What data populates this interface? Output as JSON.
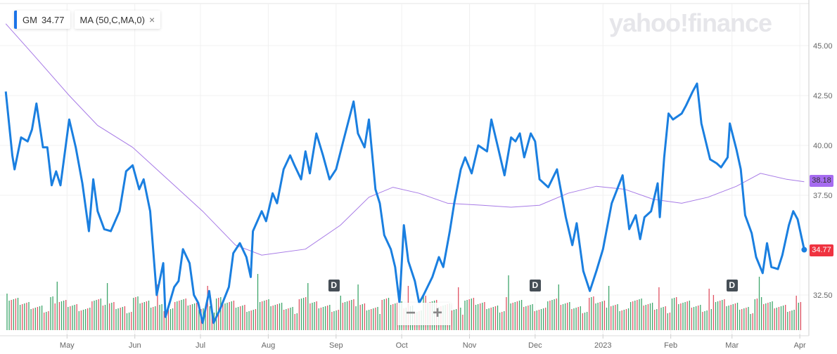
{
  "chart_data": {
    "type": "line",
    "ticker": "GM",
    "last_price": "34.77",
    "ma_label": "MA (50,C,MA,0)",
    "ma_last": "38.18",
    "y_ticks": [
      "45.00",
      "42.50",
      "40.00",
      "37.50",
      "32.50"
    ],
    "ylim": [
      30,
      46.5
    ],
    "x_ticks": [
      {
        "label": "May",
        "date": "2022-05-01"
      },
      {
        "label": "Jun",
        "date": "2022-06-01"
      },
      {
        "label": "Jul",
        "date": "2022-07-01"
      },
      {
        "label": "Aug",
        "date": "2022-08-01"
      },
      {
        "label": "Sep",
        "date": "2022-09-01"
      },
      {
        "label": "Oct",
        "date": "2022-10-01"
      },
      {
        "label": "Nov",
        "date": "2022-11-01"
      },
      {
        "label": "Dec",
        "date": "2022-12-01"
      },
      {
        "label": "2023",
        "date": "2023-01-01"
      },
      {
        "label": "Feb",
        "date": "2023-02-01"
      },
      {
        "label": "Mar",
        "date": "2023-03-01"
      },
      {
        "label": "Apr",
        "date": "2023-04-01"
      }
    ],
    "grid": true,
    "colors": {
      "price": "#1a7fe0",
      "ma": "#a77ae6",
      "last_tag": "#ef3340",
      "ma_tag": "#a66cf0",
      "vol_up": "#3fa66b",
      "vol_down": "#e05262"
    },
    "dividend_markers": [
      {
        "label": "D",
        "date": "2022-08-31"
      },
      {
        "label": "D",
        "date": "2022-12-01"
      },
      {
        "label": "D",
        "date": "2023-03-01"
      }
    ],
    "price": [
      [
        "2022-04-03",
        42.7
      ],
      [
        "2022-04-06",
        39.5
      ],
      [
        "2022-04-07",
        38.8
      ],
      [
        "2022-04-10",
        40.4
      ],
      [
        "2022-04-13",
        40.2
      ],
      [
        "2022-04-15",
        40.8
      ],
      [
        "2022-04-17",
        42.1
      ],
      [
        "2022-04-20",
        39.9
      ],
      [
        "2022-04-22",
        39.9
      ],
      [
        "2022-04-24",
        38.0
      ],
      [
        "2022-04-26",
        38.7
      ],
      [
        "2022-04-28",
        38.0
      ],
      [
        "2022-05-02",
        41.3
      ],
      [
        "2022-05-05",
        39.9
      ],
      [
        "2022-05-08",
        38.1
      ],
      [
        "2022-05-11",
        35.7
      ],
      [
        "2022-05-13",
        38.3
      ],
      [
        "2022-05-15",
        36.7
      ],
      [
        "2022-05-18",
        35.8
      ],
      [
        "2022-05-21",
        35.7
      ],
      [
        "2022-05-25",
        36.7
      ],
      [
        "2022-05-28",
        38.7
      ],
      [
        "2022-05-31",
        39.0
      ],
      [
        "2022-06-03",
        37.8
      ],
      [
        "2022-06-05",
        38.3
      ],
      [
        "2022-06-08",
        36.7
      ],
      [
        "2022-06-11",
        32.5
      ],
      [
        "2022-06-14",
        34.1
      ],
      [
        "2022-06-15",
        31.4
      ],
      [
        "2022-06-19",
        32.9
      ],
      [
        "2022-06-21",
        33.2
      ],
      [
        "2022-06-23",
        34.8
      ],
      [
        "2022-06-26",
        34.1
      ],
      [
        "2022-06-28",
        32.5
      ],
      [
        "2022-06-30",
        32.1
      ],
      [
        "2022-07-02",
        31.1
      ],
      [
        "2022-07-05",
        32.7
      ],
      [
        "2022-07-07",
        31.1
      ],
      [
        "2022-07-10",
        31.8
      ],
      [
        "2022-07-14",
        32.9
      ],
      [
        "2022-07-16",
        34.6
      ],
      [
        "2022-07-19",
        35.1
      ],
      [
        "2022-07-22",
        34.4
      ],
      [
        "2022-07-24",
        33.4
      ],
      [
        "2022-07-25",
        35.7
      ],
      [
        "2022-07-29",
        36.7
      ],
      [
        "2022-07-31",
        36.2
      ],
      [
        "2022-08-03",
        37.6
      ],
      [
        "2022-08-05",
        37.1
      ],
      [
        "2022-08-08",
        38.8
      ],
      [
        "2022-08-11",
        39.5
      ],
      [
        "2022-08-13",
        39.0
      ],
      [
        "2022-08-16",
        38.3
      ],
      [
        "2022-08-18",
        39.7
      ],
      [
        "2022-08-20",
        38.6
      ],
      [
        "2022-08-23",
        40.6
      ],
      [
        "2022-08-26",
        39.5
      ],
      [
        "2022-08-29",
        38.3
      ],
      [
        "2022-09-01",
        38.8
      ],
      [
        "2022-09-04",
        40.1
      ],
      [
        "2022-09-09",
        42.2
      ],
      [
        "2022-09-11",
        40.6
      ],
      [
        "2022-09-14",
        39.9
      ],
      [
        "2022-09-16",
        41.3
      ],
      [
        "2022-09-19",
        37.8
      ],
      [
        "2022-09-21",
        37.1
      ],
      [
        "2022-09-23",
        35.5
      ],
      [
        "2022-09-26",
        34.8
      ],
      [
        "2022-09-28",
        33.9
      ],
      [
        "2022-09-30",
        32.1
      ],
      [
        "2022-10-02",
        36.0
      ],
      [
        "2022-10-04",
        34.2
      ],
      [
        "2022-10-07",
        33.2
      ],
      [
        "2022-10-09",
        32.1
      ],
      [
        "2022-10-11",
        32.5
      ],
      [
        "2022-10-15",
        33.4
      ],
      [
        "2022-10-18",
        34.4
      ],
      [
        "2022-10-20",
        33.9
      ],
      [
        "2022-10-23",
        35.7
      ],
      [
        "2022-10-25",
        37.1
      ],
      [
        "2022-10-28",
        38.8
      ],
      [
        "2022-10-30",
        39.4
      ],
      [
        "2022-11-02",
        38.6
      ],
      [
        "2022-11-05",
        40.0
      ],
      [
        "2022-11-09",
        39.7
      ],
      [
        "2022-11-11",
        41.3
      ],
      [
        "2022-11-14",
        39.9
      ],
      [
        "2022-11-17",
        38.5
      ],
      [
        "2022-11-20",
        40.4
      ],
      [
        "2022-11-22",
        40.2
      ],
      [
        "2022-11-24",
        40.6
      ],
      [
        "2022-11-26",
        39.4
      ],
      [
        "2022-11-29",
        40.6
      ],
      [
        "2022-12-01",
        40.2
      ],
      [
        "2022-12-03",
        38.3
      ],
      [
        "2022-12-07",
        37.9
      ],
      [
        "2022-12-11",
        38.8
      ],
      [
        "2022-12-15",
        36.4
      ],
      [
        "2022-12-18",
        35.0
      ],
      [
        "2022-12-20",
        36.1
      ],
      [
        "2022-12-23",
        33.7
      ],
      [
        "2022-12-26",
        32.7
      ],
      [
        "2022-12-29",
        33.7
      ],
      [
        "2023-01-01",
        34.8
      ],
      [
        "2023-01-05",
        37.1
      ],
      [
        "2023-01-10",
        38.5
      ],
      [
        "2023-01-13",
        35.8
      ],
      [
        "2023-01-16",
        36.5
      ],
      [
        "2023-01-18",
        35.3
      ],
      [
        "2023-01-20",
        36.4
      ],
      [
        "2023-01-23",
        36.7
      ],
      [
        "2023-01-26",
        38.1
      ],
      [
        "2023-01-27",
        36.4
      ],
      [
        "2023-01-29",
        39.4
      ],
      [
        "2023-01-31",
        41.6
      ],
      [
        "2023-02-02",
        41.3
      ],
      [
        "2023-02-06",
        41.6
      ],
      [
        "2023-02-08",
        42.0
      ],
      [
        "2023-02-11",
        42.7
      ],
      [
        "2023-02-13",
        43.1
      ],
      [
        "2023-02-15",
        41.1
      ],
      [
        "2023-02-19",
        39.3
      ],
      [
        "2023-02-22",
        39.1
      ],
      [
        "2023-02-24",
        38.9
      ],
      [
        "2023-02-27",
        39.4
      ],
      [
        "2023-02-28",
        41.1
      ],
      [
        "2023-03-03",
        39.8
      ],
      [
        "2023-03-05",
        38.8
      ],
      [
        "2023-03-07",
        36.5
      ],
      [
        "2023-03-10",
        35.6
      ],
      [
        "2023-03-12",
        34.4
      ],
      [
        "2023-03-15",
        33.6
      ],
      [
        "2023-03-17",
        35.1
      ],
      [
        "2023-03-19",
        33.9
      ],
      [
        "2023-03-22",
        33.8
      ],
      [
        "2023-03-24",
        34.5
      ],
      [
        "2023-03-27",
        36.0
      ],
      [
        "2023-03-29",
        36.7
      ],
      [
        "2023-03-31",
        36.3
      ],
      [
        "2023-04-03",
        34.77
      ]
    ],
    "ma": [
      [
        "2022-04-03",
        46.1
      ],
      [
        "2022-04-16",
        44.5
      ],
      [
        "2022-05-02",
        42.5
      ],
      [
        "2022-05-15",
        41.0
      ],
      [
        "2022-05-31",
        39.9
      ],
      [
        "2022-06-16",
        38.3
      ],
      [
        "2022-07-02",
        36.7
      ],
      [
        "2022-07-17",
        35.0
      ],
      [
        "2022-07-29",
        34.5
      ],
      [
        "2022-08-18",
        34.8
      ],
      [
        "2022-09-03",
        36.0
      ],
      [
        "2022-09-16",
        37.4
      ],
      [
        "2022-09-27",
        37.9
      ],
      [
        "2022-10-09",
        37.6
      ],
      [
        "2022-10-22",
        37.1
      ],
      [
        "2022-11-07",
        37.0
      ],
      [
        "2022-11-20",
        36.9
      ],
      [
        "2022-12-03",
        37.0
      ],
      [
        "2022-12-16",
        37.6
      ],
      [
        "2022-12-29",
        37.95
      ],
      [
        "2023-01-11",
        37.8
      ],
      [
        "2023-01-24",
        37.3
      ],
      [
        "2023-02-06",
        37.1
      ],
      [
        "2023-02-18",
        37.4
      ],
      [
        "2023-03-03",
        37.95
      ],
      [
        "2023-03-14",
        38.6
      ],
      [
        "2023-03-26",
        38.3
      ],
      [
        "2023-04-03",
        38.18
      ]
    ]
  },
  "watermark": "yahoo!finance",
  "zoom": {
    "minus": "−",
    "plus": "+"
  },
  "legend": {
    "close_icon": "×"
  }
}
